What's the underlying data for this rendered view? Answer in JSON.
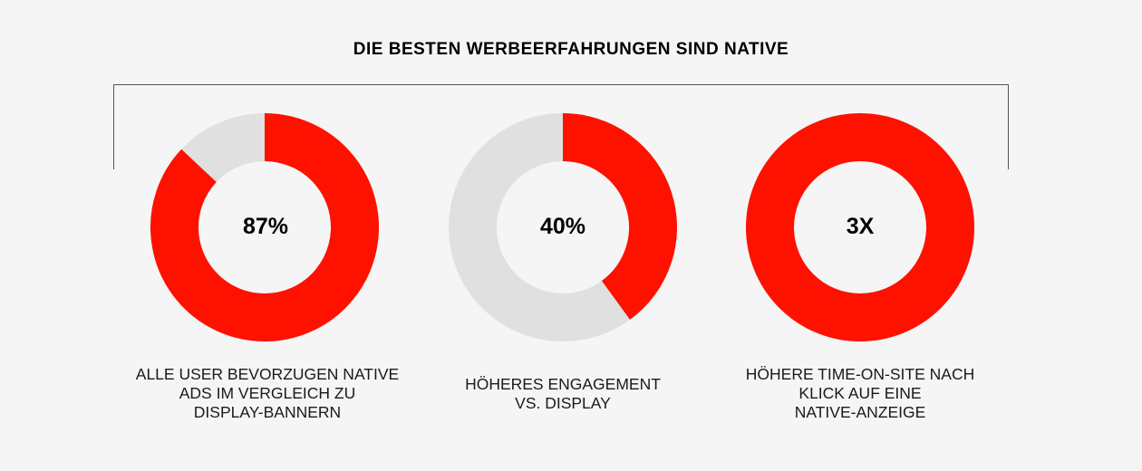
{
  "title": "DIE BESTEN WERBEERFAHRUNGEN SIND NATIVE",
  "colors": {
    "accent": "#ff1100",
    "track": "#e0e0e0"
  },
  "chart_data": {
    "type": "pie",
    "donuts": [
      {
        "value": 87,
        "max": 100,
        "center_label": "87%",
        "caption": "ALLE USER BEVORZUGEN NATIVE\nADS IM VERGLEICH ZU\nDISPLAY-BANNERN"
      },
      {
        "value": 40,
        "max": 100,
        "center_label": "40%",
        "caption": "HÖHERES ENGAGEMENT\nVS. DISPLAY"
      },
      {
        "value": 100,
        "max": 100,
        "center_label": "3X",
        "caption": "HÖHERE TIME-ON-SITE NACH\nKLICK AUF EINE\nNATIVE-ANZEIGE"
      }
    ]
  }
}
